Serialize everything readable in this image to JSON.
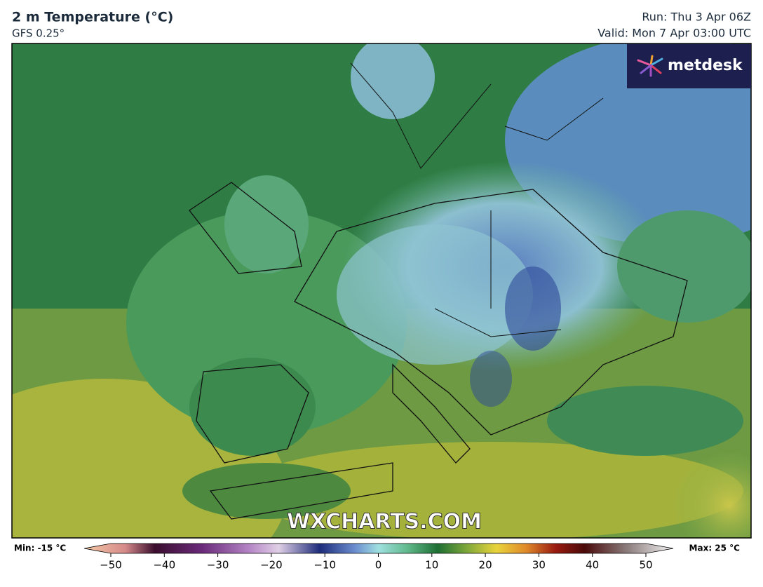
{
  "header": {
    "title": "2 m Temperature (°C)",
    "subtitle": "GFS 0.25°",
    "run": "Run: Thu 3 Apr 06Z",
    "valid": "Valid: Mon 7 Apr 03:00 UTC"
  },
  "logo": "metdesk",
  "watermark": "WXCHARTS.COM",
  "colorbar": {
    "min_label": "Min: -15 °C",
    "max_label": "Max: 25 °C",
    "xlim": [
      -50,
      50
    ],
    "ticks": [
      {
        "value": -50,
        "label": "−50"
      },
      {
        "value": -40,
        "label": "−40"
      },
      {
        "value": -30,
        "label": "−30"
      },
      {
        "value": -20,
        "label": "−20"
      },
      {
        "value": -10,
        "label": "−10"
      },
      0,
      10,
      20,
      30,
      40,
      50
    ]
  }
}
